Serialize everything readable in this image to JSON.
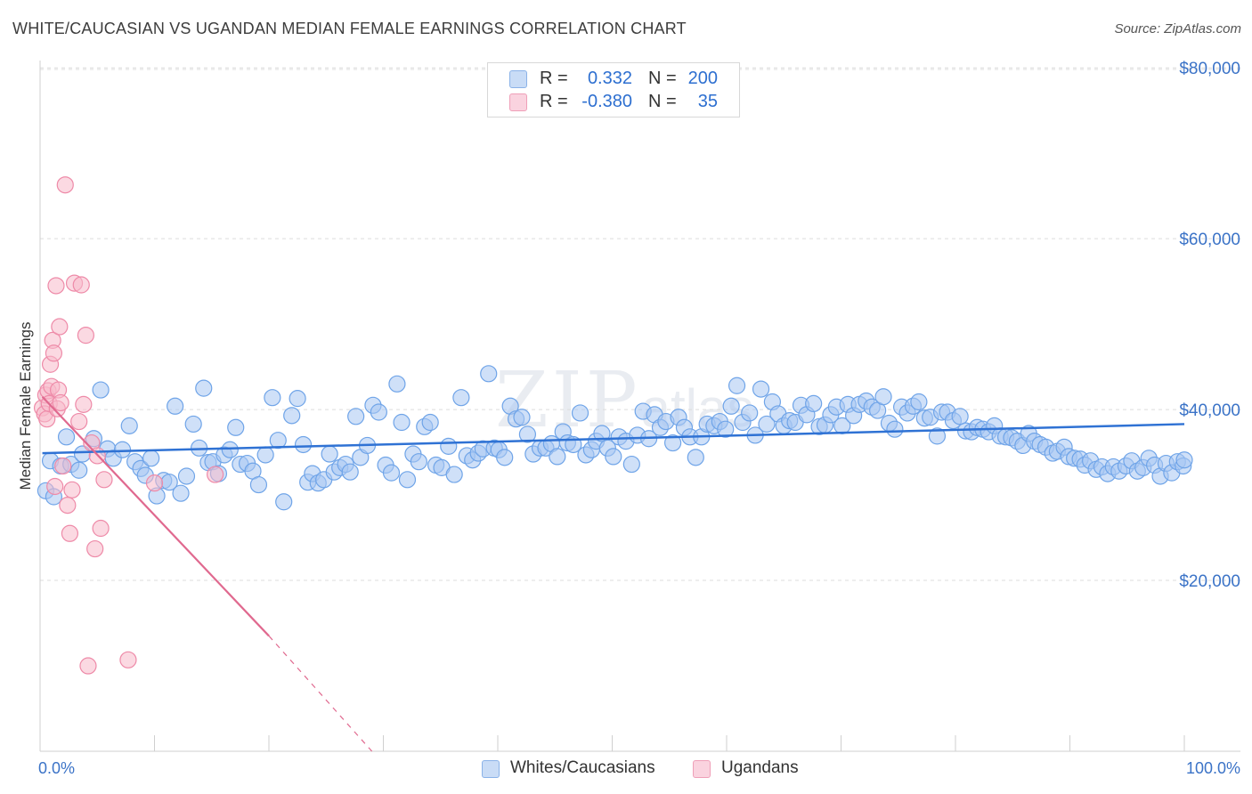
{
  "header": {
    "title": "WHITE/CAUCASIAN VS UGANDAN MEDIAN FEMALE EARNINGS CORRELATION CHART",
    "source": "Source: ZipAtlas.com"
  },
  "watermark": {
    "main": "ZIP",
    "suffix": "atlas"
  },
  "stats": [
    {
      "r_label": "R =",
      "r_value": "0.332",
      "n_label": "N =",
      "n_value": "200",
      "color": "#a7c7f2"
    },
    {
      "r_label": "R =",
      "r_value": "-0.380",
      "n_label": "N =",
      "n_value": "35",
      "color": "#f7b9cb"
    }
  ],
  "legend": [
    {
      "label": "Whites/Caucasians",
      "color": "#a7c7f2"
    },
    {
      "label": "Ugandans",
      "color": "#f7b9cb"
    }
  ],
  "chart_data": {
    "type": "scatter",
    "title": "WHITE/CAUCASIAN VS UGANDAN MEDIAN FEMALE EARNINGS CORRELATION CHART",
    "xlabel": "",
    "ylabel": "Median Female Earnings",
    "xlim": [
      0,
      100
    ],
    "ylim": [
      0,
      82000
    ],
    "x_tick_labels": [
      "0.0%",
      "100.0%"
    ],
    "y_ticks": [
      20000,
      40000,
      60000,
      80000
    ],
    "y_tick_labels": [
      "$20,000",
      "$40,000",
      "$60,000",
      "$80,000"
    ],
    "grid": true,
    "series": [
      {
        "name": "Whites/Caucasians",
        "color": "#6fa4e8",
        "fill": "#a7c7f2",
        "trend": {
          "x0": 0.2,
          "y0": 34900,
          "x1": 100,
          "y1": 38300
        },
        "points": [
          [
            0.5,
            30500
          ],
          [
            0.9,
            34000
          ],
          [
            1.2,
            29800
          ],
          [
            1.8,
            33400
          ],
          [
            2.3,
            36800
          ],
          [
            2.7,
            33600
          ],
          [
            3.4,
            32900
          ],
          [
            3.7,
            34800
          ],
          [
            4.7,
            36600
          ],
          [
            5.3,
            42300
          ],
          [
            5.9,
            35400
          ],
          [
            6.4,
            34300
          ],
          [
            7.2,
            35300
          ],
          [
            7.8,
            38100
          ],
          [
            8.3,
            33900
          ],
          [
            8.8,
            33100
          ],
          [
            9.2,
            32300
          ],
          [
            9.7,
            34300
          ],
          [
            10.2,
            29900
          ],
          [
            10.8,
            31700
          ],
          [
            11.3,
            31500
          ],
          [
            11.8,
            40400
          ],
          [
            12.3,
            30200
          ],
          [
            12.8,
            32200
          ],
          [
            13.4,
            38300
          ],
          [
            13.9,
            35500
          ],
          [
            14.3,
            42500
          ],
          [
            14.7,
            33800
          ],
          [
            15.1,
            33900
          ],
          [
            15.6,
            32500
          ],
          [
            16.1,
            34700
          ],
          [
            16.6,
            35300
          ],
          [
            17.1,
            37900
          ],
          [
            17.5,
            33600
          ],
          [
            18.1,
            33700
          ],
          [
            18.6,
            32800
          ],
          [
            19.1,
            31200
          ],
          [
            19.7,
            34700
          ],
          [
            20.3,
            41400
          ],
          [
            20.8,
            36400
          ],
          [
            21.3,
            29200
          ],
          [
            22.0,
            39300
          ],
          [
            22.5,
            41300
          ],
          [
            23.0,
            35900
          ],
          [
            23.4,
            31500
          ],
          [
            23.8,
            32500
          ],
          [
            24.3,
            31400
          ],
          [
            24.8,
            31800
          ],
          [
            25.3,
            34800
          ],
          [
            25.7,
            32700
          ],
          [
            26.2,
            33200
          ],
          [
            26.7,
            33600
          ],
          [
            27.1,
            32700
          ],
          [
            27.6,
            39200
          ],
          [
            28.0,
            34400
          ],
          [
            28.6,
            35800
          ],
          [
            29.1,
            40500
          ],
          [
            29.6,
            39700
          ],
          [
            30.2,
            33500
          ],
          [
            30.7,
            32600
          ],
          [
            31.2,
            43000
          ],
          [
            31.6,
            38500
          ],
          [
            32.1,
            31800
          ],
          [
            32.6,
            34800
          ],
          [
            33.1,
            33900
          ],
          [
            33.6,
            38000
          ],
          [
            34.1,
            38500
          ],
          [
            34.6,
            33500
          ],
          [
            35.1,
            33200
          ],
          [
            35.7,
            35700
          ],
          [
            36.2,
            32400
          ],
          [
            36.8,
            41400
          ],
          [
            37.3,
            34600
          ],
          [
            37.8,
            34100
          ],
          [
            38.3,
            34900
          ],
          [
            38.7,
            35400
          ],
          [
            39.2,
            44200
          ],
          [
            39.7,
            35500
          ],
          [
            40.1,
            35300
          ],
          [
            40.6,
            34400
          ],
          [
            41.1,
            40400
          ],
          [
            41.6,
            38900
          ],
          [
            42.1,
            39100
          ],
          [
            42.6,
            37100
          ],
          [
            43.1,
            34800
          ],
          [
            43.7,
            35500
          ],
          [
            44.2,
            35500
          ],
          [
            44.7,
            36000
          ],
          [
            45.2,
            34500
          ],
          [
            45.7,
            37400
          ],
          [
            46.1,
            36100
          ],
          [
            46.6,
            35900
          ],
          [
            47.2,
            39600
          ],
          [
            47.7,
            34700
          ],
          [
            48.2,
            35300
          ],
          [
            48.6,
            36300
          ],
          [
            49.1,
            37200
          ],
          [
            49.6,
            35500
          ],
          [
            50.1,
            34500
          ],
          [
            50.6,
            36800
          ],
          [
            51.2,
            36300
          ],
          [
            51.7,
            33600
          ],
          [
            52.2,
            37000
          ],
          [
            52.7,
            39800
          ],
          [
            53.2,
            36600
          ],
          [
            53.7,
            39400
          ],
          [
            54.2,
            37900
          ],
          [
            54.7,
            38600
          ],
          [
            55.3,
            36100
          ],
          [
            55.8,
            39100
          ],
          [
            56.3,
            37900
          ],
          [
            56.8,
            36800
          ],
          [
            57.3,
            34400
          ],
          [
            57.8,
            36800
          ],
          [
            58.3,
            38300
          ],
          [
            58.9,
            38100
          ],
          [
            59.4,
            38600
          ],
          [
            59.9,
            37700
          ],
          [
            60.4,
            40400
          ],
          [
            60.9,
            42800
          ],
          [
            61.4,
            38500
          ],
          [
            62.0,
            39600
          ],
          [
            62.5,
            37000
          ],
          [
            63.0,
            42400
          ],
          [
            63.5,
            38300
          ],
          [
            64.0,
            40900
          ],
          [
            64.5,
            39500
          ],
          [
            65.0,
            38100
          ],
          [
            65.5,
            38700
          ],
          [
            66.0,
            38500
          ],
          [
            66.5,
            40500
          ],
          [
            67.0,
            39400
          ],
          [
            67.6,
            40700
          ],
          [
            68.1,
            38000
          ],
          [
            68.6,
            38200
          ],
          [
            69.1,
            39400
          ],
          [
            69.6,
            40300
          ],
          [
            70.1,
            38100
          ],
          [
            70.6,
            40600
          ],
          [
            71.1,
            39300
          ],
          [
            71.6,
            40600
          ],
          [
            72.2,
            41000
          ],
          [
            72.7,
            40300
          ],
          [
            73.2,
            39900
          ],
          [
            73.7,
            41500
          ],
          [
            74.2,
            38400
          ],
          [
            74.7,
            37700
          ],
          [
            75.3,
            40300
          ],
          [
            75.8,
            39600
          ],
          [
            76.3,
            40400
          ],
          [
            76.8,
            40900
          ],
          [
            77.3,
            39000
          ],
          [
            77.8,
            39100
          ],
          [
            78.4,
            36900
          ],
          [
            78.8,
            39700
          ],
          [
            79.3,
            39700
          ],
          [
            79.8,
            38700
          ],
          [
            80.4,
            39200
          ],
          [
            80.9,
            37500
          ],
          [
            81.4,
            37400
          ],
          [
            81.9,
            37900
          ],
          [
            82.4,
            37700
          ],
          [
            82.9,
            37400
          ],
          [
            83.4,
            38100
          ],
          [
            83.9,
            36900
          ],
          [
            84.4,
            36800
          ],
          [
            84.9,
            36700
          ],
          [
            85.4,
            36300
          ],
          [
            85.9,
            35800
          ],
          [
            86.4,
            37200
          ],
          [
            86.9,
            36300
          ],
          [
            87.4,
            35900
          ],
          [
            87.9,
            35600
          ],
          [
            88.5,
            34900
          ],
          [
            88.9,
            35100
          ],
          [
            89.5,
            35600
          ],
          [
            89.9,
            34500
          ],
          [
            90.4,
            34300
          ],
          [
            90.9,
            34200
          ],
          [
            91.3,
            33500
          ],
          [
            91.8,
            34000
          ],
          [
            92.3,
            33000
          ],
          [
            92.8,
            33300
          ],
          [
            93.3,
            32500
          ],
          [
            93.8,
            33300
          ],
          [
            94.3,
            32800
          ],
          [
            94.9,
            33400
          ],
          [
            95.4,
            34000
          ],
          [
            95.9,
            32800
          ],
          [
            96.4,
            33200
          ],
          [
            96.9,
            34300
          ],
          [
            97.4,
            33500
          ],
          [
            97.9,
            32200
          ],
          [
            98.4,
            33700
          ],
          [
            98.9,
            32600
          ],
          [
            99.4,
            33900
          ],
          [
            99.9,
            33400
          ],
          [
            100.0,
            34100
          ]
        ]
      },
      {
        "name": "Ugandans",
        "color": "#ee8aa8",
        "fill": "#f7b9cb",
        "trend": {
          "x0": 0.2,
          "y0": 41500,
          "x1": 20,
          "y1": 13500,
          "x2": 29,
          "y2": 0
        },
        "points": [
          [
            0.2,
            40200
          ],
          [
            0.4,
            39500
          ],
          [
            0.5,
            41700
          ],
          [
            0.6,
            38900
          ],
          [
            0.7,
            42200
          ],
          [
            0.8,
            40700
          ],
          [
            0.9,
            45300
          ],
          [
            1.0,
            42700
          ],
          [
            1.1,
            48100
          ],
          [
            1.2,
            46600
          ],
          [
            1.3,
            31000
          ],
          [
            1.4,
            54500
          ],
          [
            1.5,
            40100
          ],
          [
            1.6,
            42300
          ],
          [
            1.7,
            49700
          ],
          [
            1.8,
            40800
          ],
          [
            2.0,
            33400
          ],
          [
            2.2,
            66300
          ],
          [
            2.4,
            28800
          ],
          [
            2.6,
            25500
          ],
          [
            2.8,
            30600
          ],
          [
            3.0,
            54800
          ],
          [
            3.4,
            38600
          ],
          [
            3.6,
            54600
          ],
          [
            3.8,
            40600
          ],
          [
            4.0,
            48700
          ],
          [
            4.2,
            10000
          ],
          [
            4.5,
            36100
          ],
          [
            4.8,
            23700
          ],
          [
            5.0,
            34600
          ],
          [
            5.3,
            26100
          ],
          [
            5.6,
            31800
          ],
          [
            7.7,
            10700
          ],
          [
            10.0,
            31400
          ],
          [
            15.3,
            32400
          ]
        ]
      }
    ]
  }
}
